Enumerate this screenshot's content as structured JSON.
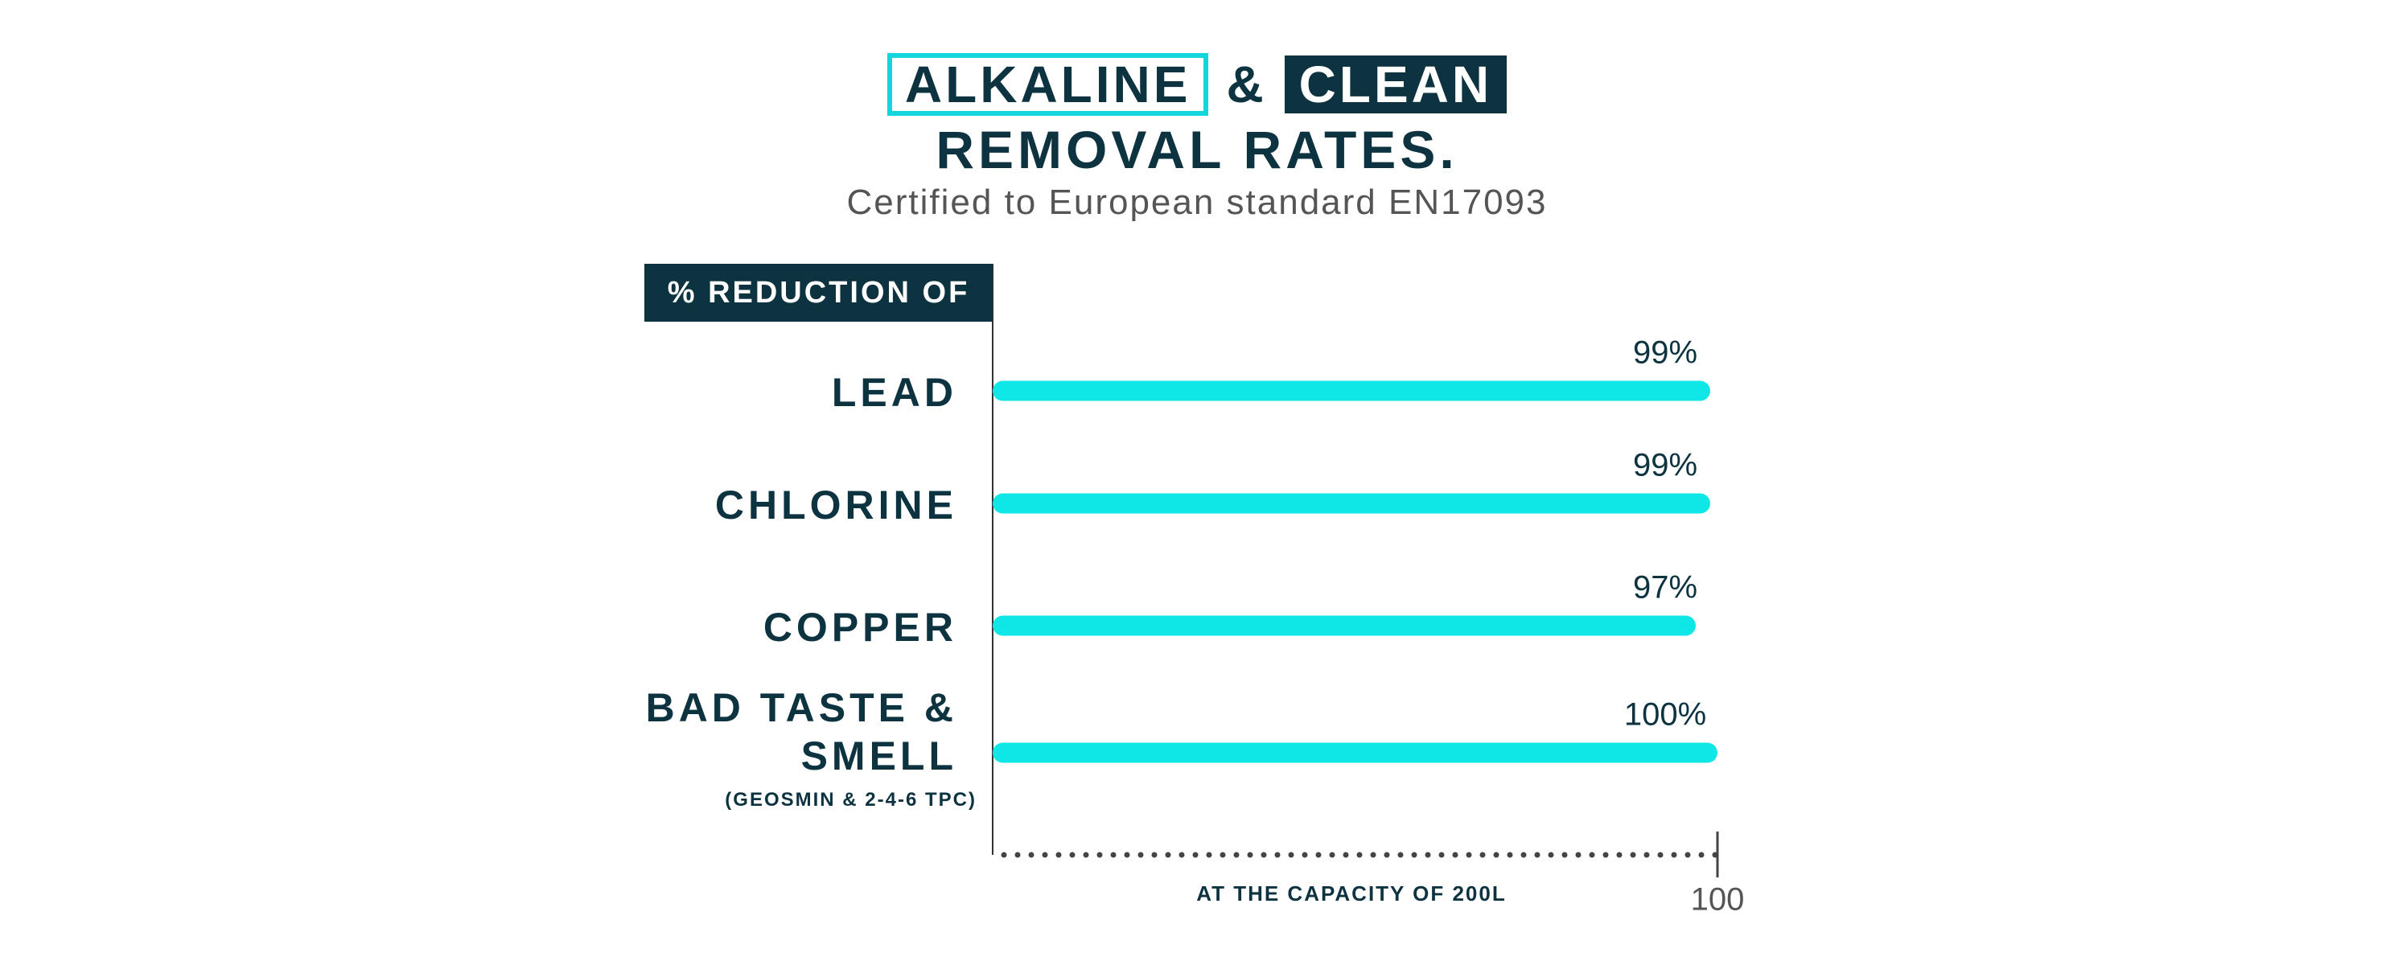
{
  "chart_data": {
    "type": "bar",
    "orientation": "horizontal",
    "title_outlined": "ALKALINE",
    "title_connector": "&",
    "title_filled": "CLEAN",
    "title": "REMOVAL RATES.",
    "subtitle": "Certified to European standard EN17093",
    "header": "% REDUCTION OF",
    "categories": [
      "LEAD",
      "CHLORINE",
      "COPPER",
      "BAD TASTE & SMELL"
    ],
    "category_notes": [
      null,
      null,
      null,
      "(GEOSMIN & 2-4-6 TPC)"
    ],
    "values": [
      99,
      99,
      97,
      100
    ],
    "value_labels": [
      "99%",
      "99%",
      "97%",
      "100%"
    ],
    "xlim": [
      0,
      100
    ],
    "xticks": [
      100
    ],
    "xlabel": "AT THE CAPACITY OF 200L",
    "color": "#0fe6e6"
  }
}
